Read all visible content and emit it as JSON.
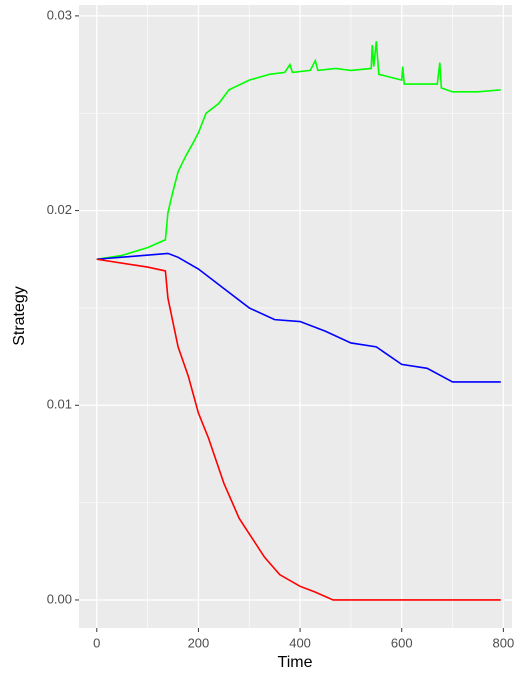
{
  "chart_data": {
    "type": "line",
    "x_label": "Time",
    "y_label": "Strategy",
    "xlim": [
      -35,
      817
    ],
    "ylim": [
      -0.00144,
      0.03056
    ],
    "xticks": [
      0,
      200,
      400,
      600,
      800
    ],
    "yticks": [
      {
        "value": 0,
        "label": "0.00"
      },
      0.01,
      0.02,
      0.03
    ],
    "x_minor_ticks": [
      100,
      300,
      500,
      700
    ],
    "y_minor_ticks": [
      0.005,
      0.015,
      0.025
    ],
    "grid": true,
    "series": [
      {
        "color": "#00ff00",
        "x": [
          0,
          50,
          100,
          135,
          140,
          150,
          160,
          175,
          190,
          200,
          215,
          240,
          260,
          300,
          340,
          370,
          380,
          385,
          420,
          430,
          435,
          470,
          500,
          540,
          542,
          545,
          550,
          555,
          600,
          602,
          605,
          670,
          675,
          678,
          700,
          750,
          795
        ],
        "values": [
          0.0175,
          0.0177,
          0.0181,
          0.0185,
          0.0199,
          0.021,
          0.022,
          0.0228,
          0.0235,
          0.024,
          0.025,
          0.0255,
          0.0262,
          0.0267,
          0.027,
          0.0271,
          0.0275,
          0.0271,
          0.0272,
          0.0277,
          0.0272,
          0.0273,
          0.0272,
          0.0273,
          0.0285,
          0.0274,
          0.0287,
          0.027,
          0.0267,
          0.0274,
          0.0265,
          0.0265,
          0.0276,
          0.0263,
          0.0261,
          0.0261,
          0.0262
        ]
      },
      {
        "color": "#0000ff",
        "x": [
          0,
          140,
          160,
          200,
          250,
          300,
          350,
          400,
          450,
          500,
          550,
          600,
          650,
          700,
          795
        ],
        "values": [
          0.0175,
          0.0178,
          0.0176,
          0.017,
          0.016,
          0.015,
          0.0144,
          0.0143,
          0.0138,
          0.0132,
          0.013,
          0.0121,
          0.0119,
          0.0112,
          0.0112
        ]
      },
      {
        "color": "#ff0000",
        "x": [
          0,
          100,
          135,
          140,
          160,
          180,
          200,
          220,
          250,
          280,
          300,
          330,
          360,
          400,
          430,
          465,
          795
        ],
        "values": [
          0.0175,
          0.0171,
          0.0169,
          0.0155,
          0.013,
          0.0115,
          0.0096,
          0.0083,
          0.006,
          0.0042,
          0.0034,
          0.0022,
          0.0013,
          0.0007,
          0.0004,
          0,
          0
        ]
      }
    ]
  }
}
